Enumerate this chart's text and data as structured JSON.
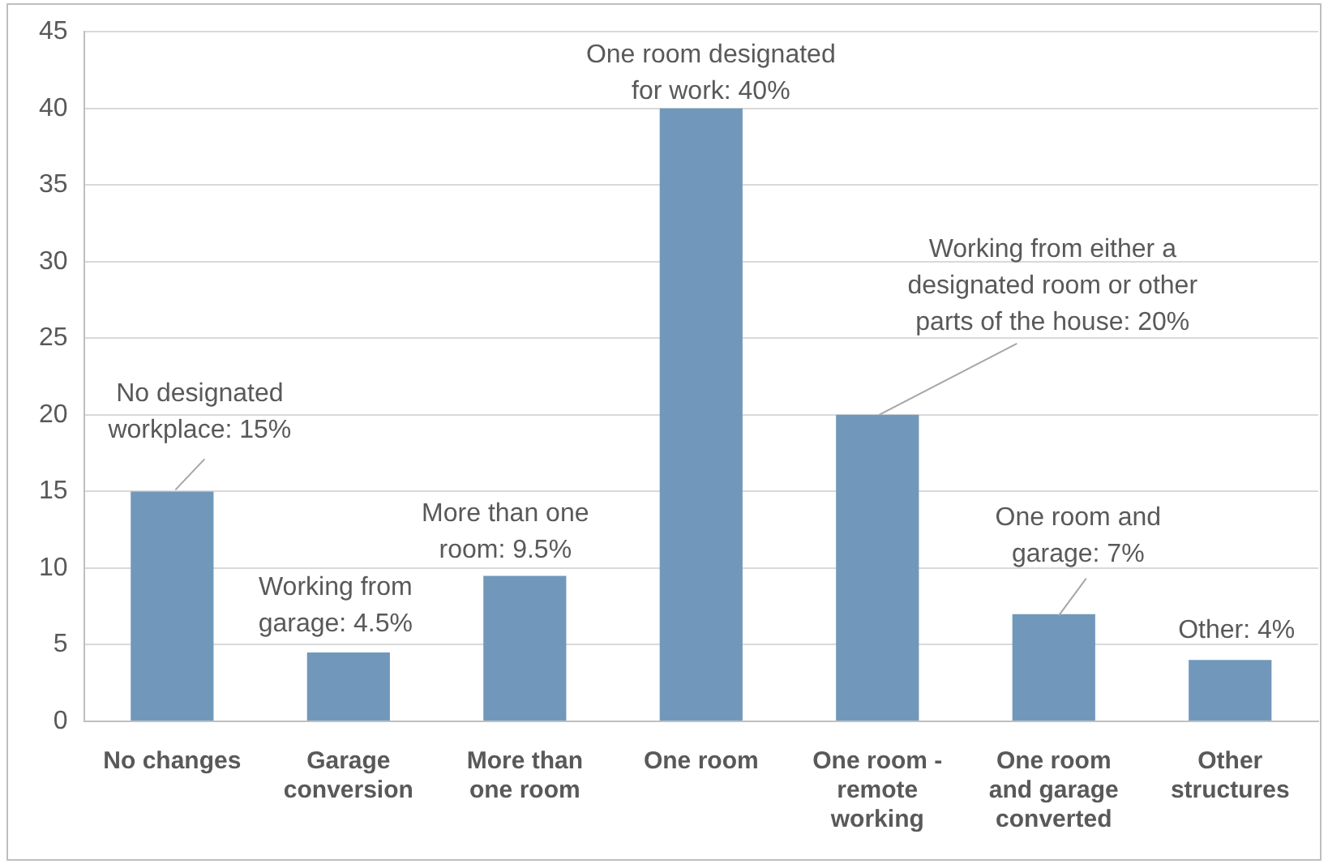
{
  "chart_data": {
    "type": "bar",
    "categories": [
      "No changes",
      "Garage conversion",
      "More than one room",
      "One room",
      "One room - remote working",
      "One room and garage converted",
      "Other structures"
    ],
    "values": [
      15,
      4.5,
      9.5,
      40,
      20,
      7,
      4
    ],
    "color": "#7198bb",
    "ylim": [
      0,
      45
    ],
    "yticks": [
      0,
      5,
      10,
      15,
      20,
      25,
      30,
      35,
      40,
      45
    ],
    "grid": "y",
    "legend": false,
    "annotations": [
      {
        "text": "No designated workplace: 15%",
        "x": "No changes",
        "y": 15
      },
      {
        "text": "Working from garage: 4.5%",
        "x": "Garage conversion",
        "y": 4.5
      },
      {
        "text": "More than one room: 9.5%",
        "x": "More than one room",
        "y": 9.5
      },
      {
        "text": "One room designated for work: 40%",
        "x": "One room",
        "y": 40
      },
      {
        "text": "Working from either a designated room or other parts of the house: 20%",
        "x": "One room - remote working",
        "y": 20
      },
      {
        "text": "One room and garage: 7%",
        "x": "One room and garage converted",
        "y": 7
      },
      {
        "text": "Other: 4%",
        "x": "Other structures",
        "y": 4
      }
    ]
  }
}
